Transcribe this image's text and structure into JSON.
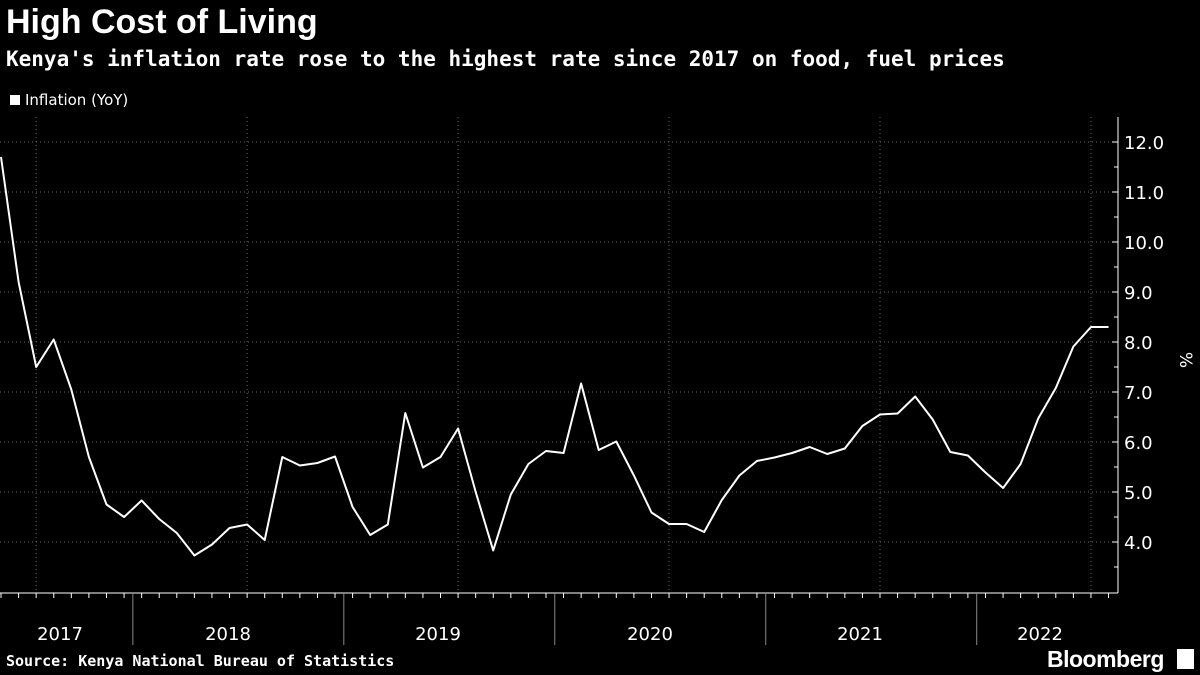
{
  "title": "High Cost of Living",
  "subtitle": "Kenya's inflation rate rose to the highest rate since 2017 on food, fuel prices",
  "source": "Source: Kenya National Bureau of Statistics",
  "brand": "Bloomberg",
  "colors": {
    "background": "#000000",
    "line": "#ffffff",
    "grid": "#666666"
  },
  "chart_data": {
    "type": "line",
    "title": "High Cost of Living",
    "subtitle": "Kenya's inflation rate rose to the highest rate since 2017 on food, fuel prices",
    "ylabel": "%",
    "ylim": [
      3.0,
      12.5
    ],
    "y_ticks": [
      4.0,
      5.0,
      6.0,
      7.0,
      8.0,
      9.0,
      10.0,
      11.0,
      12.0
    ],
    "y_tick_labels": [
      "4.0",
      "5.0",
      "6.0",
      "7.0",
      "8.0",
      "9.0",
      "10.0",
      "11.0",
      "12.0"
    ],
    "x_year_labels": [
      "2017",
      "2018",
      "2019",
      "2020",
      "2021",
      "2022"
    ],
    "x_start": "2017-05",
    "legend": [
      "Inflation (YoY)"
    ],
    "legend_position": "top-left",
    "grid": true,
    "series": [
      {
        "name": "Inflation (YoY)",
        "x": [
          "2017-05",
          "2017-06",
          "2017-07",
          "2017-08",
          "2017-09",
          "2017-10",
          "2017-11",
          "2017-12",
          "2018-01",
          "2018-02",
          "2018-03",
          "2018-04",
          "2018-05",
          "2018-06",
          "2018-07",
          "2018-08",
          "2018-09",
          "2018-10",
          "2018-11",
          "2018-12",
          "2019-01",
          "2019-02",
          "2019-03",
          "2019-04",
          "2019-05",
          "2019-06",
          "2019-07",
          "2019-08",
          "2019-09",
          "2019-10",
          "2019-11",
          "2019-12",
          "2020-01",
          "2020-02",
          "2020-03",
          "2020-04",
          "2020-05",
          "2020-06",
          "2020-07",
          "2020-08",
          "2020-09",
          "2020-10",
          "2020-11",
          "2020-12",
          "2021-01",
          "2021-02",
          "2021-03",
          "2021-04",
          "2021-05",
          "2021-06",
          "2021-07",
          "2021-08",
          "2021-09",
          "2021-10",
          "2021-11",
          "2021-12",
          "2022-01",
          "2022-02",
          "2022-03",
          "2022-04",
          "2022-05",
          "2022-06",
          "2022-07",
          "2022-08"
        ],
        "values": [
          11.7,
          9.2,
          7.5,
          8.05,
          7.05,
          5.7,
          4.75,
          4.5,
          4.83,
          4.46,
          4.18,
          3.73,
          3.95,
          4.28,
          4.35,
          4.04,
          5.7,
          5.53,
          5.58,
          5.71,
          4.7,
          4.14,
          4.35,
          6.58,
          5.49,
          5.7,
          6.27,
          5.0,
          3.83,
          4.95,
          5.56,
          5.82,
          5.78,
          7.17,
          5.84,
          6.01,
          5.33,
          4.59,
          4.36,
          4.36,
          4.2,
          4.84,
          5.33,
          5.62,
          5.69,
          5.78,
          5.9,
          5.76,
          5.87,
          6.32,
          6.55,
          6.57,
          6.91,
          6.45,
          5.8,
          5.73,
          5.39,
          5.08,
          5.56,
          6.47,
          7.08,
          7.91,
          8.3,
          8.3
        ]
      }
    ]
  }
}
